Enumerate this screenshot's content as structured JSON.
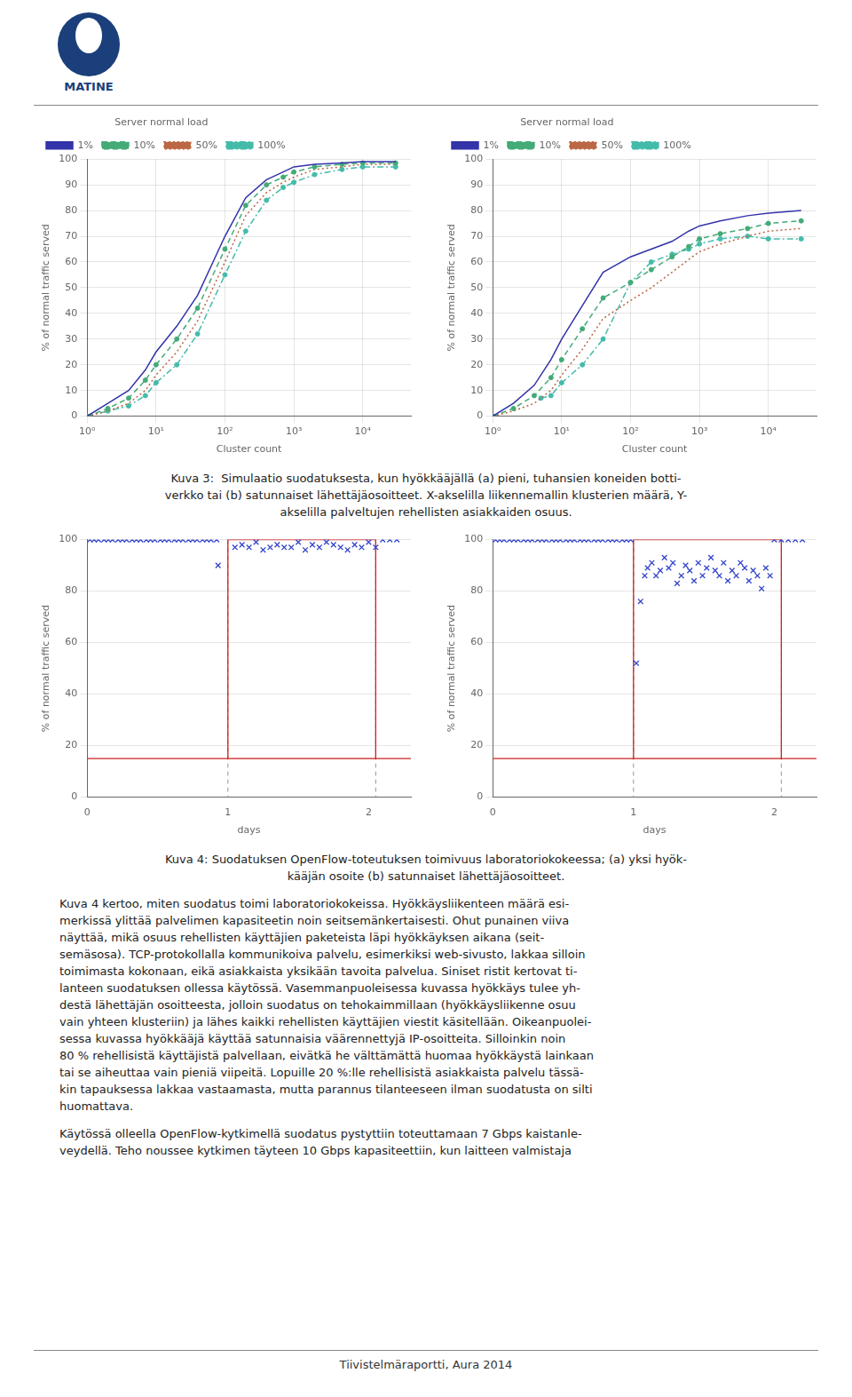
{
  "logo_text": "MATINE",
  "chart_data": [
    {
      "type": "line",
      "xlabel": "Cluster count",
      "ylabel": "% of normal traffic served",
      "log": "x",
      "xlim": [
        1,
        50000
      ],
      "xticks": [
        {
          "value": 1,
          "label": "10⁰"
        },
        {
          "value": 10,
          "label": "10¹"
        },
        {
          "value": 100,
          "label": "10²"
        },
        {
          "value": 1000,
          "label": "10³"
        },
        {
          "value": 10000,
          "label": "10⁴"
        }
      ],
      "ylim": [
        0,
        100
      ],
      "yticks": [
        0,
        10,
        20,
        30,
        40,
        50,
        60,
        70,
        80,
        90,
        100
      ],
      "grid": true,
      "legend": "upper left",
      "legend_title": "Server normal load",
      "series": [
        {
          "name": "1%",
          "color": "#3333aa",
          "line_style": "solid",
          "marker": "none",
          "x": [
            1,
            2,
            4,
            7,
            10,
            20,
            40,
            100,
            200,
            400,
            700,
            1000,
            2000,
            5000,
            10000,
            30000
          ],
          "values": [
            0,
            5,
            10,
            18,
            25,
            35,
            47,
            70,
            85,
            92,
            95,
            97,
            98,
            98.5,
            99,
            99
          ]
        },
        {
          "name": "10%",
          "color": "#44aa77",
          "line_style": "dashed",
          "marker": "circle",
          "x": [
            1,
            2,
            4,
            7,
            10,
            20,
            40,
            100,
            200,
            400,
            700,
            1000,
            2000,
            5000,
            10000,
            30000
          ],
          "values": [
            0,
            3,
            7,
            14,
            20,
            30,
            42,
            65,
            82,
            90,
            93,
            95,
            97,
            98,
            98.5,
            98.5
          ]
        },
        {
          "name": "50%",
          "color": "#bb6644",
          "line_style": "dotted",
          "marker": "none",
          "x": [
            1,
            2,
            4,
            7,
            10,
            20,
            40,
            100,
            200,
            400,
            700,
            1000,
            2000,
            5000,
            10000,
            30000
          ],
          "values": [
            0,
            2,
            5,
            10,
            16,
            25,
            37,
            60,
            78,
            87,
            91,
            93,
            96,
            97,
            98,
            98
          ]
        },
        {
          "name": "100%",
          "color": "#44bbaa",
          "line_style": "dashdot",
          "marker": "circle",
          "x": [
            1,
            2,
            4,
            7,
            10,
            20,
            40,
            100,
            200,
            400,
            700,
            1000,
            2000,
            5000,
            10000,
            30000
          ],
          "values": [
            0,
            2,
            4,
            8,
            13,
            20,
            32,
            55,
            72,
            84,
            89,
            91,
            94,
            96,
            97,
            97
          ]
        }
      ]
    },
    {
      "type": "line",
      "xlabel": "Cluster count",
      "ylabel": "% of normal traffic served",
      "log": "x",
      "xlim": [
        1,
        50000
      ],
      "xticks": [
        {
          "value": 1,
          "label": "10⁰"
        },
        {
          "value": 10,
          "label": "10¹"
        },
        {
          "value": 100,
          "label": "10²"
        },
        {
          "value": 1000,
          "label": "10³"
        },
        {
          "value": 10000,
          "label": "10⁴"
        }
      ],
      "ylim": [
        0,
        100
      ],
      "yticks": [
        0,
        10,
        20,
        30,
        40,
        50,
        60,
        70,
        80,
        90,
        100
      ],
      "grid": true,
      "legend": "upper left",
      "legend_title": "Server normal load",
      "series": [
        {
          "name": "1%",
          "color": "#3333aa",
          "line_style": "solid",
          "marker": "none",
          "x": [
            1,
            2,
            4,
            7,
            10,
            20,
            40,
            100,
            200,
            400,
            700,
            1000,
            2000,
            5000,
            10000,
            30000
          ],
          "values": [
            0,
            5,
            12,
            22,
            30,
            43,
            56,
            62,
            65,
            68,
            72,
            74,
            76,
            78,
            79,
            80
          ]
        },
        {
          "name": "10%",
          "color": "#44aa77",
          "line_style": "dashed",
          "marker": "circle",
          "x": [
            1,
            2,
            4,
            7,
            10,
            20,
            40,
            100,
            200,
            400,
            700,
            1000,
            2000,
            5000,
            10000,
            30000
          ],
          "values": [
            0,
            3,
            8,
            15,
            22,
            34,
            46,
            52,
            57,
            62,
            66,
            69,
            71,
            73,
            75,
            76
          ]
        },
        {
          "name": "50%",
          "color": "#bb6644",
          "line_style": "dotted",
          "marker": "none",
          "x": [
            1,
            2,
            4,
            7,
            10,
            20,
            40,
            100,
            200,
            400,
            700,
            1000,
            2000,
            5000,
            10000,
            30000
          ],
          "values": [
            0,
            2,
            5,
            10,
            16,
            26,
            38,
            45,
            50,
            56,
            61,
            64,
            67,
            70,
            72,
            73
          ]
        },
        {
          "name": "100%",
          "color": "#44bbaa",
          "line_style": "dashdot",
          "marker": "circle",
          "x": [
            5,
            7,
            10,
            20,
            40,
            100,
            200,
            400,
            700,
            1000,
            2000,
            5000,
            10000,
            30000
          ],
          "values": [
            7,
            8,
            13,
            20,
            30,
            52,
            60,
            63,
            65,
            67,
            69,
            70,
            69,
            69
          ]
        }
      ]
    },
    {
      "type": "scatter",
      "xlabel": "days",
      "ylabel": "% of normal traffic served",
      "xlim": [
        0,
        2.3
      ],
      "xticks": [
        0,
        1,
        2
      ],
      "ylim": [
        0,
        100
      ],
      "yticks": [
        0,
        20,
        40,
        60,
        80,
        100
      ],
      "grid": "y",
      "attack_window": [
        1.0,
        2.05
      ],
      "no_filter_level": 15,
      "no_filter_color": "#cc2222",
      "series": [
        {
          "color": "#3344cc",
          "marker": "x",
          "x": [
            0.02,
            0.05,
            0.08,
            0.12,
            0.15,
            0.18,
            0.22,
            0.25,
            0.28,
            0.32,
            0.35,
            0.38,
            0.42,
            0.45,
            0.48,
            0.52,
            0.55,
            0.58,
            0.62,
            0.65,
            0.68,
            0.72,
            0.75,
            0.78,
            0.82,
            0.85,
            0.88,
            0.92
          ],
          "values": [
            100,
            100,
            100,
            100,
            100,
            100,
            100,
            100,
            100,
            100,
            100,
            100,
            100,
            100,
            100,
            100,
            100,
            100,
            100,
            100,
            100,
            100,
            100,
            100,
            100,
            100,
            100,
            100
          ]
        },
        {
          "color": "#3344cc",
          "marker": "x",
          "x": [
            0.93
          ],
          "values": [
            90
          ]
        },
        {
          "color": "#3344cc",
          "marker": "x",
          "x": [
            1.05,
            1.1,
            1.15,
            1.2,
            1.25,
            1.3,
            1.35,
            1.4,
            1.45,
            1.5,
            1.55,
            1.6,
            1.65,
            1.7,
            1.75,
            1.8,
            1.85,
            1.9,
            1.95,
            2.0,
            2.05,
            2.1,
            2.15,
            2.2
          ],
          "values": [
            97,
            98,
            97,
            99,
            96,
            97,
            98,
            97,
            97,
            99,
            96,
            98,
            97,
            99,
            98,
            97,
            96,
            98,
            97,
            99,
            97,
            100,
            100,
            100
          ]
        }
      ]
    },
    {
      "type": "scatter",
      "xlabel": "days",
      "ylabel": "% of normal traffic served",
      "xlim": [
        0,
        2.3
      ],
      "xticks": [
        0,
        1,
        2
      ],
      "ylim": [
        0,
        100
      ],
      "yticks": [
        0,
        20,
        40,
        60,
        80,
        100
      ],
      "grid": "y",
      "attack_window": [
        1.0,
        2.05
      ],
      "no_filter_level": 15,
      "no_filter_color": "#cc2222",
      "series": [
        {
          "color": "#3344cc",
          "marker": "x",
          "x": [
            0.02,
            0.05,
            0.08,
            0.12,
            0.15,
            0.18,
            0.22,
            0.25,
            0.28,
            0.32,
            0.35,
            0.38,
            0.42,
            0.45,
            0.48,
            0.52,
            0.55,
            0.58,
            0.62,
            0.65,
            0.68,
            0.72,
            0.75,
            0.78,
            0.82,
            0.85,
            0.88,
            0.92,
            0.95,
            0.98
          ],
          "values": [
            100,
            100,
            100,
            100,
            100,
            100,
            100,
            100,
            100,
            100,
            100,
            100,
            100,
            100,
            100,
            100,
            100,
            100,
            100,
            100,
            100,
            100,
            100,
            100,
            100,
            100,
            100,
            100,
            100,
            100
          ]
        },
        {
          "color": "#3344cc",
          "marker": "x",
          "x": [
            1.02,
            1.05,
            1.08,
            1.1,
            1.13,
            1.16,
            1.19,
            1.22,
            1.25,
            1.28,
            1.31,
            1.34,
            1.37,
            1.4,
            1.43,
            1.46,
            1.49,
            1.52,
            1.55,
            1.58,
            1.61,
            1.64,
            1.67,
            1.7,
            1.73,
            1.76,
            1.79,
            1.82,
            1.85,
            1.88,
            1.91,
            1.94,
            1.97,
            2.0,
            2.05,
            2.1,
            2.15,
            2.2
          ],
          "values": [
            52,
            76,
            86,
            89,
            91,
            86,
            88,
            93,
            89,
            91,
            83,
            86,
            90,
            88,
            84,
            91,
            86,
            89,
            93,
            88,
            86,
            91,
            84,
            88,
            86,
            91,
            89,
            84,
            88,
            86,
            81,
            89,
            86,
            100,
            100,
            100,
            100,
            100
          ]
        }
      ]
    }
  ],
  "caption3": [
    "Kuva 3:  Simulaatio suodatuksesta, kun hyökkääjällä (a) pieni, tuhansien koneiden botti-",
    "verkko tai (b) satunnaiset lähettäjäosoitteet. X-akselilla liikennemallin klusterien määrä, Y-",
    "akselilla palveltujen rehellisten asiakkaiden osuus."
  ],
  "caption4": [
    "Kuva 4: Suodatuksen OpenFlow-toteutuksen toimivuus laboratoriokokeessa; (a) yksi hyök-",
    "kääjän osoite (b) satunnaiset lähettäjäosoitteet."
  ],
  "body_text": [
    "Kuva 4 kertoo, miten suodatus toimi laboratoriokokeissa. Hyökkäysliikenteen määrä esi-",
    "merkissä ylittää palvelimen kapasiteetin noin seitsemänkertaisesti. Ohut punainen viiva",
    "näyttää, mikä osuus rehellisten käyttäjien paketeista läpi hyökkäyksen aikana (seit-",
    "semäsosa). TCP-protokollalla kommunikoiva palvelu, esimerkiksi web-sivusto, lakkaa silloin",
    "toimimasta kokonaan, eikä asiakkaista yksikään tavoita palvelua. Siniset ristit kertovat ti-",
    "lanteen suodatuksen ollessa käytössä. Vasemmanpuoleisessa kuvassa hyökkäys tulee yh-",
    "destä lähettäjän osoitteesta, jolloin suodatus on tehokaimmillaan (hyökkäysliikenne osuu",
    "vain yhteen klusteriin) ja lähes kaikki rehellisten käyttäjien viestit käsitellään. Oikeanpuolei-",
    "sessa kuvassa hyökkääjä käyttää satunnaisia väärennettyjä IP-osoitteita. Silloinkin noin",
    "80 % rehellisistä käyttäjistä palvellaan, eivätkä he välttämättä huomaa hyökkäystä lainkaan",
    "tai se aiheuttaa vain pieniä viipeitä. Lopuille 20 %:lle rehellisistä asiakkaista palvelu tässä-",
    "kin tapauksessa lakkaa vastaamasta, mutta parannus tilanteeseen ilman suodatusta on silti",
    "huomattava."
  ],
  "body_text2": [
    "Käytössä olleella OpenFlow-kytkimellä suodatus pystyttiin toteuttamaan 7 Gbps kaistanle-",
    "veydellä. Teho noussee kytkimen täyteen 10 Gbps kapasiteettiin, kun laitteen valmistaja"
  ],
  "footer": "Tiivistelmäraportti, Aura 2014"
}
